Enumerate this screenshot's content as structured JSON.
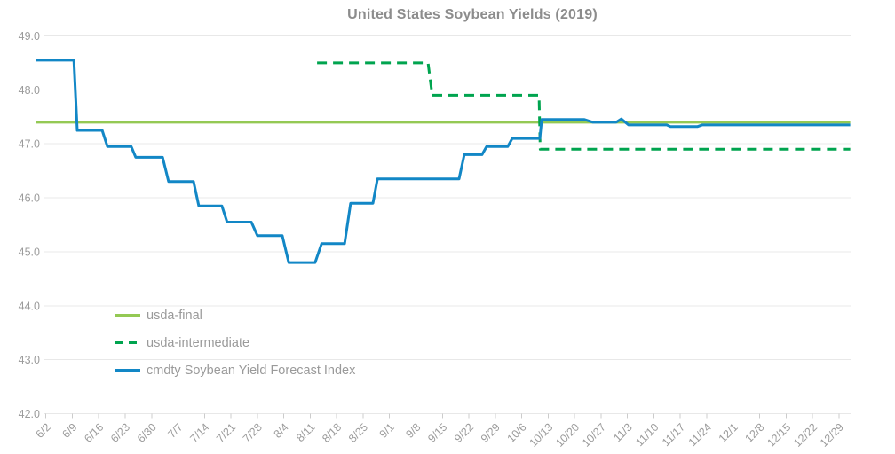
{
  "chart_data": {
    "type": "line",
    "title": "United States Soybean Yields (2019)",
    "x_axis": {
      "unit": "week-ending date, 2019",
      "x_value_unit": "days since 6/2",
      "label_rotation_deg": -45,
      "tick_labels": [
        "6/2",
        "6/9",
        "6/16",
        "6/23",
        "6/30",
        "7/7",
        "7/14",
        "7/21",
        "7/28",
        "8/4",
        "8/11",
        "8/18",
        "8/25",
        "9/1",
        "9/8",
        "9/15",
        "9/22",
        "9/29",
        "10/6",
        "10/13",
        "10/20",
        "10/27",
        "11/3",
        "11/10",
        "11/17",
        "11/24",
        "12/1",
        "12/8",
        "12/15",
        "12/22",
        "12/29"
      ]
    },
    "y_axis": {
      "min": 42.0,
      "max": 49.0,
      "tick_step": 1.0,
      "tick_labels": [
        "49.0",
        "48.0",
        "47.0",
        "46.0",
        "45.0",
        "44.0",
        "43.0",
        "42.0"
      ]
    },
    "grid": true,
    "legend_position": "inside-bottom-left",
    "colors": {
      "background": "#ffffff",
      "grid": "#e8e8e8",
      "tick": "#cccccc",
      "axis_text": "#9b9b9b",
      "title_text": "#8c8c8c",
      "legend_text": "#9a9a9a",
      "usda_final": "#94c954",
      "usda_intermediate": "#00a44f",
      "cmdty_index": "#1287c6"
    },
    "series": [
      {
        "name": "usda-final",
        "style": "solid",
        "color": "#94c954",
        "points": [
          [
            -2.7,
            47.4
          ],
          [
            213,
            47.4
          ]
        ]
      },
      {
        "name": "usda-intermediate",
        "style": "dashed",
        "color": "#00a44f",
        "points": [
          [
            71.8,
            48.5
          ],
          [
            101.2,
            48.5
          ],
          [
            102.3,
            47.9
          ],
          [
            130.6,
            47.9
          ],
          [
            130.9,
            46.9
          ],
          [
            213,
            46.9
          ]
        ]
      },
      {
        "name": "cmdty Soybean Yield Forecast Index",
        "style": "solid",
        "color": "#1287c6",
        "points": [
          [
            -2.7,
            48.55
          ],
          [
            7.4,
            48.55
          ],
          [
            8.3,
            47.25
          ],
          [
            14.9,
            47.25
          ],
          [
            16.3,
            46.95
          ],
          [
            22.6,
            46.95
          ],
          [
            23.8,
            46.75
          ],
          [
            30.9,
            46.75
          ],
          [
            32.5,
            46.3
          ],
          [
            39.1,
            46.3
          ],
          [
            40.5,
            45.85
          ],
          [
            46.6,
            45.85
          ],
          [
            48,
            45.55
          ],
          [
            54.4,
            45.55
          ],
          [
            56,
            45.3
          ],
          [
            62.6,
            45.3
          ],
          [
            64.3,
            44.8
          ],
          [
            71.3,
            44.8
          ],
          [
            73,
            45.15
          ],
          [
            79.1,
            45.15
          ],
          [
            80.7,
            45.9
          ],
          [
            86.6,
            45.9
          ],
          [
            87.8,
            46.35
          ],
          [
            109.4,
            46.35
          ],
          [
            110.8,
            46.8
          ],
          [
            115.5,
            46.8
          ],
          [
            116.7,
            46.95
          ],
          [
            122.3,
            46.95
          ],
          [
            123.5,
            47.1
          ],
          [
            130.8,
            47.1
          ],
          [
            131.3,
            47.45
          ],
          [
            142.6,
            47.45
          ],
          [
            144.9,
            47.4
          ],
          [
            151,
            47.4
          ],
          [
            152.4,
            47.46
          ],
          [
            154.3,
            47.35
          ],
          [
            164.4,
            47.35
          ],
          [
            165.4,
            47.32
          ],
          [
            172.6,
            47.32
          ],
          [
            173.8,
            47.35
          ],
          [
            213,
            47.35
          ]
        ]
      }
    ]
  }
}
